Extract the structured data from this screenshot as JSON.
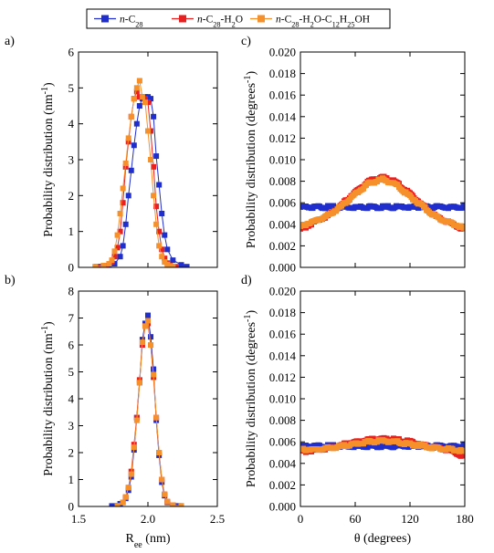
{
  "legend": {
    "entries": [
      {
        "parts": [
          [
            "i",
            "n"
          ],
          [
            "t",
            "-C"
          ],
          [
            "sub",
            "28"
          ]
        ],
        "color": "#1f2ecc",
        "marker": "square"
      },
      {
        "parts": [
          [
            "i",
            "n"
          ],
          [
            "t",
            "-C"
          ],
          [
            "sub",
            "28"
          ],
          [
            "t",
            "-H"
          ],
          [
            "sub",
            "2"
          ],
          [
            "t",
            "O"
          ]
        ],
        "color": "#e82020",
        "marker": "square"
      },
      {
        "parts": [
          [
            "i",
            "n"
          ],
          [
            "t",
            "-C"
          ],
          [
            "sub",
            "28"
          ],
          [
            "t",
            "-H"
          ],
          [
            "sub",
            "2"
          ],
          [
            "t",
            "O-C"
          ],
          [
            "sub",
            "12"
          ],
          [
            "t",
            "H"
          ],
          [
            "sub",
            "25"
          ],
          [
            "t",
            "OH"
          ]
        ],
        "color": "#f5902a",
        "marker": "square"
      }
    ]
  },
  "chart_data": [
    {
      "id": "a",
      "panel_label": "a)",
      "type": "line",
      "xlim": [
        1.5,
        2.5
      ],
      "ylim": [
        0,
        6
      ],
      "yticks": [
        0,
        1,
        2,
        3,
        4,
        5,
        6
      ],
      "ytick_labels": [
        "0",
        "1",
        "2",
        "3",
        "4",
        "5",
        "6"
      ],
      "xticks": [
        1.5,
        2.0,
        2.5
      ],
      "xtick_labels": [],
      "ylabel": [
        [
          "t",
          "Probability distribution (nm"
        ],
        [
          "sup",
          "-1"
        ],
        [
          "t",
          ")"
        ]
      ],
      "xlabel": [],
      "series": [
        {
          "color": "#1f2ecc",
          "marker": "square",
          "x": [
            1.66,
            1.72,
            1.76,
            1.8,
            1.82,
            1.84,
            1.86,
            1.88,
            1.9,
            1.92,
            1.94,
            1.96,
            1.98,
            2.0,
            2.02,
            2.04,
            2.06,
            2.08,
            2.1,
            2.12,
            2.14,
            2.18,
            2.24,
            2.28
          ],
          "y": [
            0.02,
            0.05,
            0.1,
            0.3,
            0.6,
            1.2,
            2.0,
            2.7,
            3.4,
            4.0,
            4.5,
            4.7,
            4.75,
            4.75,
            4.7,
            4.2,
            3.1,
            2.3,
            1.5,
            0.9,
            0.5,
            0.2,
            0.07,
            0.02
          ]
        },
        {
          "color": "#e82020",
          "marker": "square",
          "x": [
            1.63,
            1.7,
            1.74,
            1.76,
            1.78,
            1.8,
            1.82,
            1.84,
            1.86,
            1.88,
            1.9,
            1.92,
            1.94,
            1.96,
            1.98,
            2.0,
            2.02,
            2.04,
            2.06,
            2.08,
            2.1,
            2.12,
            2.14,
            2.16,
            2.2
          ],
          "y": [
            0.02,
            0.05,
            0.15,
            0.3,
            0.55,
            1.0,
            1.8,
            2.8,
            3.5,
            4.2,
            4.7,
            4.9,
            4.75,
            4.75,
            4.7,
            4.6,
            3.8,
            2.8,
            1.7,
            1.0,
            0.5,
            0.25,
            0.12,
            0.05,
            0.02
          ]
        },
        {
          "color": "#f5902a",
          "marker": "square",
          "x": [
            1.62,
            1.68,
            1.72,
            1.74,
            1.76,
            1.78,
            1.8,
            1.82,
            1.84,
            1.86,
            1.88,
            1.9,
            1.92,
            1.94,
            1.96,
            1.98,
            2.0,
            2.02,
            2.04,
            2.06,
            2.08,
            2.1,
            2.12,
            2.14,
            2.16,
            2.18
          ],
          "y": [
            0.02,
            0.05,
            0.1,
            0.2,
            0.45,
            0.9,
            1.5,
            2.2,
            2.9,
            3.6,
            4.2,
            4.7,
            5.0,
            5.2,
            4.75,
            4.6,
            3.8,
            3.0,
            2.0,
            1.2,
            0.6,
            0.3,
            0.15,
            0.08,
            0.04,
            0.02
          ]
        }
      ]
    },
    {
      "id": "b",
      "panel_label": "b)",
      "type": "line",
      "xlim": [
        1.5,
        2.5
      ],
      "ylim": [
        0,
        8
      ],
      "yticks": [
        0,
        1,
        2,
        3,
        4,
        5,
        6,
        7,
        8
      ],
      "ytick_labels": [
        "0",
        "1",
        "2",
        "3",
        "4",
        "5",
        "6",
        "7",
        "8"
      ],
      "xticks": [
        1.5,
        2.0,
        2.5
      ],
      "xtick_labels": [
        "1.5",
        "2.0",
        "2.5"
      ],
      "ylabel": [
        [
          "t",
          "Probability distribution (nm"
        ],
        [
          "sup",
          "-1"
        ],
        [
          "t",
          ")"
        ]
      ],
      "xlabel": [
        [
          "t",
          "R"
        ],
        [
          "sub",
          "ee"
        ],
        [
          "t",
          " (nm)"
        ]
      ],
      "series": [
        {
          "color": "#1f2ecc",
          "marker": "square",
          "x": [
            1.74,
            1.8,
            1.84,
            1.86,
            1.88,
            1.9,
            1.92,
            1.94,
            1.96,
            1.98,
            2.0,
            2.02,
            2.04,
            2.06,
            2.08,
            2.1,
            2.12,
            2.14,
            2.18,
            2.22
          ],
          "y": [
            0.02,
            0.1,
            0.3,
            0.6,
            1.1,
            2.1,
            3.3,
            4.6,
            6.2,
            6.8,
            7.1,
            6.3,
            5.1,
            3.2,
            1.9,
            0.9,
            0.4,
            0.15,
            0.05,
            0.02
          ]
        },
        {
          "color": "#e82020",
          "marker": "square",
          "x": [
            1.78,
            1.82,
            1.84,
            1.86,
            1.88,
            1.9,
            1.92,
            1.94,
            1.96,
            1.98,
            2.0,
            2.02,
            2.04,
            2.06,
            2.08,
            2.1,
            2.12,
            2.14,
            2.18,
            2.24
          ],
          "y": [
            0.03,
            0.15,
            0.35,
            0.7,
            1.3,
            2.3,
            3.3,
            4.7,
            6.0,
            6.7,
            6.8,
            6.0,
            4.8,
            3.3,
            2.0,
            1.0,
            0.45,
            0.18,
            0.05,
            0.02
          ]
        },
        {
          "color": "#f5902a",
          "marker": "square",
          "x": [
            1.78,
            1.82,
            1.84,
            1.86,
            1.88,
            1.9,
            1.92,
            1.94,
            1.96,
            1.98,
            2.0,
            2.02,
            2.04,
            2.06,
            2.08,
            2.1,
            2.12,
            2.14,
            2.18,
            2.24
          ],
          "y": [
            0.03,
            0.15,
            0.35,
            0.7,
            1.2,
            2.2,
            3.2,
            4.6,
            6.1,
            6.7,
            6.9,
            6.0,
            4.9,
            3.3,
            2.0,
            1.0,
            0.45,
            0.18,
            0.05,
            0.02
          ]
        }
      ]
    },
    {
      "id": "c",
      "panel_label": "c)",
      "type": "scatter",
      "xlim": [
        0,
        180
      ],
      "ylim": [
        0,
        0.02
      ],
      "yticks": [
        0,
        0.002,
        0.004,
        0.006,
        0.008,
        0.01,
        0.012,
        0.014,
        0.016,
        0.018,
        0.02
      ],
      "ytick_labels": [
        "0.000",
        "0.002",
        "0.004",
        "0.006",
        "0.008",
        "0.010",
        "0.012",
        "0.014",
        "0.016",
        "0.018",
        "0.020"
      ],
      "xticks": [
        0,
        60,
        120,
        180
      ],
      "xtick_labels": [],
      "ylabel": [
        [
          "t",
          "Probability distribution (degrees"
        ],
        [
          "sup",
          "-1"
        ],
        [
          "t",
          ")"
        ]
      ],
      "xlabel": [],
      "series": [
        {
          "color": "#1f2ecc",
          "marker": "square",
          "x": [
            0,
            15,
            30,
            45,
            60,
            75,
            90,
            105,
            120,
            135,
            150,
            165,
            180
          ],
          "y": [
            0.0056,
            0.0056,
            0.0056,
            0.0056,
            0.0056,
            0.0056,
            0.0056,
            0.0056,
            0.0056,
            0.0056,
            0.0056,
            0.0056,
            0.0056
          ]
        },
        {
          "color": "#e82020",
          "marker": "square",
          "x": [
            0,
            15,
            30,
            45,
            60,
            75,
            90,
            105,
            120,
            135,
            150,
            165,
            180
          ],
          "y": [
            0.0035,
            0.0042,
            0.0048,
            0.0058,
            0.007,
            0.008,
            0.0084,
            0.0079,
            0.0068,
            0.0057,
            0.0046,
            0.0041,
            0.0035
          ]
        },
        {
          "color": "#f5902a",
          "marker": "square",
          "x": [
            0,
            15,
            30,
            45,
            60,
            75,
            90,
            105,
            120,
            135,
            150,
            165,
            180
          ],
          "y": [
            0.0038,
            0.0043,
            0.0048,
            0.0057,
            0.0068,
            0.0078,
            0.0082,
            0.0077,
            0.0066,
            0.0056,
            0.0046,
            0.0041,
            0.0036
          ]
        }
      ]
    },
    {
      "id": "d",
      "panel_label": "d)",
      "type": "scatter",
      "xlim": [
        0,
        180
      ],
      "ylim": [
        0,
        0.02
      ],
      "yticks": [
        0,
        0.002,
        0.004,
        0.006,
        0.008,
        0.01,
        0.012,
        0.014,
        0.016,
        0.018,
        0.02
      ],
      "ytick_labels": [
        "0.000",
        "0.002",
        "0.004",
        "0.006",
        "0.008",
        "0.010",
        "0.012",
        "0.014",
        "0.016",
        "0.018",
        "0.020"
      ],
      "xticks": [
        0,
        60,
        120,
        180
      ],
      "xtick_labels": [
        "0",
        "60",
        "120",
        "180"
      ],
      "ylabel": [
        [
          "t",
          "Probability distribution (degrees"
        ],
        [
          "sup",
          "-1"
        ],
        [
          "t",
          ")"
        ]
      ],
      "xlabel": [
        [
          "t",
          "θ (degrees)"
        ]
      ],
      "series": [
        {
          "color": "#1f2ecc",
          "marker": "square",
          "x": [
            0,
            15,
            30,
            45,
            60,
            75,
            90,
            105,
            120,
            135,
            150,
            165,
            180
          ],
          "y": [
            0.0056,
            0.0056,
            0.0056,
            0.0056,
            0.0056,
            0.0056,
            0.0056,
            0.0056,
            0.0056,
            0.0056,
            0.0056,
            0.0056,
            0.0056
          ]
        },
        {
          "color": "#e82020",
          "marker": "square",
          "x": [
            0,
            15,
            30,
            45,
            60,
            75,
            90,
            105,
            120,
            135,
            150,
            165,
            180
          ],
          "y": [
            0.0051,
            0.0052,
            0.0054,
            0.0057,
            0.006,
            0.0062,
            0.0063,
            0.0062,
            0.006,
            0.0057,
            0.0054,
            0.0052,
            0.0046
          ]
        },
        {
          "color": "#f5902a",
          "marker": "square",
          "x": [
            0,
            15,
            30,
            45,
            60,
            75,
            90,
            105,
            120,
            135,
            150,
            165,
            180
          ],
          "y": [
            0.0053,
            0.0053,
            0.0054,
            0.0056,
            0.0058,
            0.006,
            0.0061,
            0.006,
            0.0058,
            0.0056,
            0.0054,
            0.0053,
            0.0051
          ]
        }
      ]
    }
  ]
}
